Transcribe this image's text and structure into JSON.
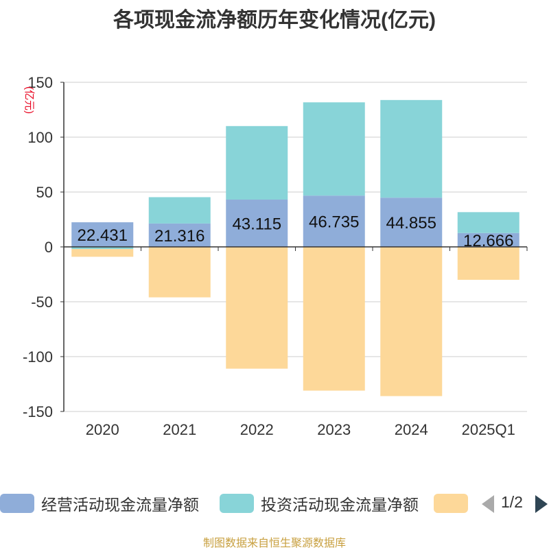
{
  "title": "各项现金流净额历年变化情况(亿元)",
  "source": "制图数据来自恒生聚源数据库",
  "pager": "1/2",
  "chart_data": {
    "type": "bar",
    "stacked": true,
    "categories": [
      "2020",
      "2021",
      "2022",
      "2023",
      "2024",
      "2025Q1"
    ],
    "ylabel": "(亿元)",
    "ylim": [
      -150,
      150
    ],
    "yticks": [
      150,
      100,
      50,
      0,
      -50,
      -100,
      -150
    ],
    "grid": true,
    "legend_position": "bottom",
    "series": [
      {
        "name": "经营活动现金流量净额",
        "color": "#8fadd9",
        "values": [
          22.431,
          21.316,
          43.115,
          46.735,
          44.855,
          12.666
        ],
        "labels": [
          "22.431",
          "21.316",
          "43.115",
          "46.735",
          "44.855",
          "12.666"
        ]
      },
      {
        "name": "投资活动现金流量净额",
        "color": "#88d4d8",
        "values": [
          -2,
          24,
          67,
          85,
          89,
          19
        ]
      },
      {
        "name": "",
        "color": "#fdd899",
        "values": [
          -7,
          -46,
          -111,
          -131,
          -136,
          -30
        ]
      }
    ]
  }
}
